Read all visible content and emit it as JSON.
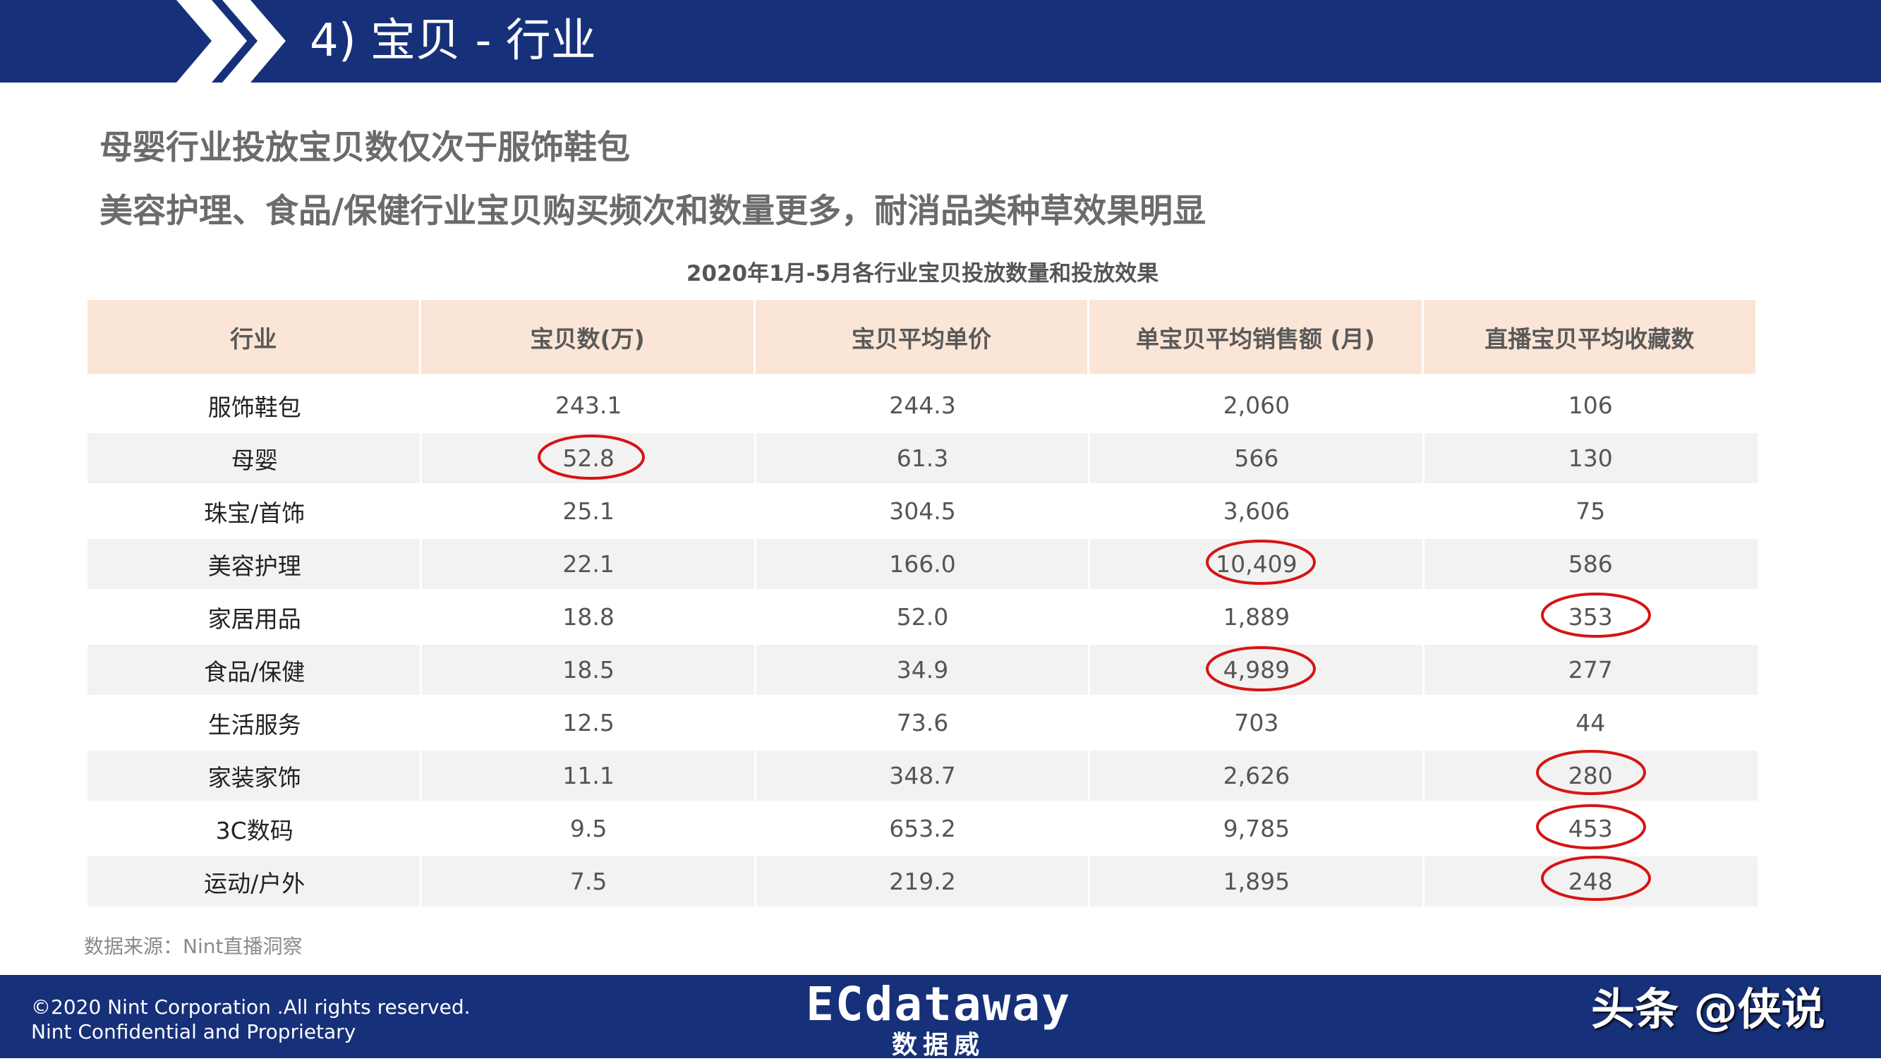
{
  "header": {
    "title": "4) 宝贝 - 行业"
  },
  "subtitles": [
    "母婴行业投放宝贝数仅次于服饰鞋包",
    "美容护理、食品/保健行业宝贝购买频次和数量更多，耐消品类种草效果明显"
  ],
  "table": {
    "title": "2020年1月-5月各行业宝贝投放数量和投放效果",
    "columns": [
      "行业",
      "宝贝数(万)",
      "宝贝平均单价",
      "单宝贝平均销售额 (月)",
      "直播宝贝平均收藏数"
    ],
    "rows": [
      [
        "服饰鞋包",
        "243.1",
        "244.3",
        "2,060",
        "106"
      ],
      [
        "母婴",
        "52.8",
        "61.3",
        "566",
        "130"
      ],
      [
        "珠宝/首饰",
        "25.1",
        "304.5",
        "3,606",
        "75"
      ],
      [
        "美容护理",
        "22.1",
        "166.0",
        "10,409",
        "586"
      ],
      [
        "家居用品",
        "18.8",
        "52.0",
        "1,889",
        "353"
      ],
      [
        "食品/保健",
        "18.5",
        "34.9",
        "4,989",
        "277"
      ],
      [
        "生活服务",
        "12.5",
        "73.6",
        "703",
        "44"
      ],
      [
        "家装家饰",
        "11.1",
        "348.7",
        "2,626",
        "280"
      ],
      [
        "3C数码",
        "9.5",
        "653.2",
        "9,785",
        "453"
      ],
      [
        "运动/户外",
        "7.5",
        "219.2",
        "1,895",
        "248"
      ]
    ]
  },
  "source": "数据来源：Nint直播洞察",
  "footer": {
    "lines": [
      "©2020 Nint Corporation .All rights reserved.",
      "Nint Confidential and Proprietary"
    ]
  },
  "logo": {
    "name": "ECdataway",
    "subtitle": "数据威"
  },
  "watermark": "头条 @侠说"
}
